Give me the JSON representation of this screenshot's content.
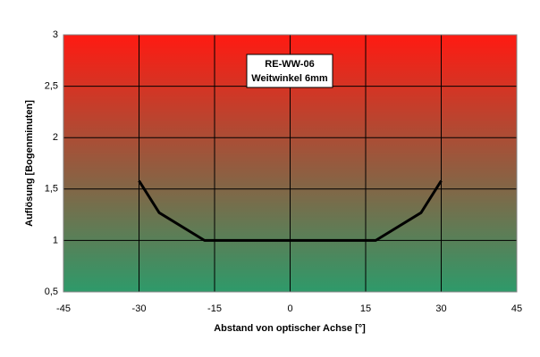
{
  "chart_data": {
    "type": "line",
    "title": "RE-WW-06",
    "subtitle": "Weitwinkel 6mm",
    "x_label": "Abstand von optischer Achse [°]",
    "y_label": "Auflösung [Bogenminuten]",
    "x": [
      -30,
      -26,
      -17,
      17,
      26,
      30
    ],
    "series": [
      {
        "name": "RE-WW-06",
        "color": "#000000",
        "values": [
          1.58,
          1.27,
          1.0,
          1.0,
          1.27,
          1.58
        ]
      }
    ],
    "xlim": [
      -45,
      45
    ],
    "xticks": [
      -45,
      -30,
      -15,
      0,
      15,
      30,
      45
    ],
    "ylim": [
      0.5,
      3
    ],
    "yticks": [
      {
        "value": 0.5,
        "label": "0,5"
      },
      1,
      {
        "value": 1.5,
        "label": "1,5"
      },
      2,
      {
        "value": 2.5,
        "label": "2,5"
      },
      3
    ],
    "grid": true,
    "background_gradient": [
      "#ff1a12",
      "#2e9a6a"
    ]
  }
}
